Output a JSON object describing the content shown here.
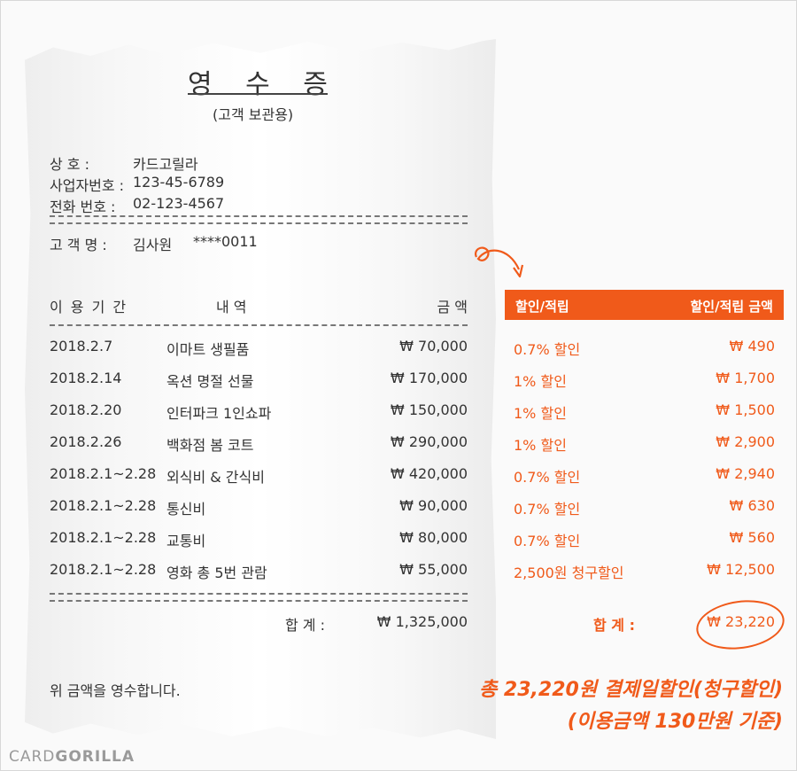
{
  "receipt": {
    "title": "영 수 증",
    "subtitle": "(고객 보관용)",
    "store": {
      "name_label": "상       호 :",
      "name_value": "카드고릴라",
      "biz_label": "사업자번호 :",
      "biz_value": "123-45-6789",
      "phone_label": "전화  번호 :",
      "phone_value": "02-123-4567"
    },
    "customer_label": "고  객  명 :",
    "customer_value": "김사원",
    "card_value": "****0011",
    "headers": {
      "period": "이 용 기 간",
      "item": "내         역",
      "amount": "금        액"
    },
    "rows": [
      {
        "date": "2018.2.7",
        "item": "이마트 생필품",
        "amount": "₩ 70,000"
      },
      {
        "date": "2018.2.14",
        "item": "옥션 명절 선물",
        "amount": "₩ 170,000"
      },
      {
        "date": "2018.2.20",
        "item": "인터파크 1인쇼파",
        "amount": "₩ 150,000"
      },
      {
        "date": "2018.2.26",
        "item": "백화점 봄 코트",
        "amount": "₩ 290,000"
      },
      {
        "date": "2018.2.1~2.28",
        "item": "외식비 & 간식비",
        "amount": "₩ 420,000"
      },
      {
        "date": "2018.2.1~2.28",
        "item": "통신비",
        "amount": "₩ 90,000"
      },
      {
        "date": "2018.2.1~2.28",
        "item": "교통비",
        "amount": "₩ 80,000"
      },
      {
        "date": "2018.2.1~2.28",
        "item": "영화 총 5번 관람",
        "amount": "₩ 55,000"
      }
    ],
    "total_label": "합      계 :",
    "total_value": "₩ 1,325,000",
    "footer": "위 금액을 영수합니다."
  },
  "discount": {
    "header_left": "할인/적립",
    "header_right": "할인/적립 금액",
    "rows": [
      {
        "desc": "0.7% 할인",
        "amount": "₩ 490"
      },
      {
        "desc": "1% 할인",
        "amount": "₩ 1,700"
      },
      {
        "desc": "1% 할인",
        "amount": "₩ 1,500"
      },
      {
        "desc": "1% 할인",
        "amount": "₩ 2,900"
      },
      {
        "desc": "0.7% 할인",
        "amount": "₩ 2,940"
      },
      {
        "desc": "0.7% 할인",
        "amount": "₩ 630"
      },
      {
        "desc": "0.7% 할인",
        "amount": "₩ 560"
      },
      {
        "desc": "2,500원 청구할인",
        "amount": "₩ 12,500"
      }
    ],
    "total_label": "합      계 :",
    "total_value": "₩ 23,220"
  },
  "summary": {
    "line1": "총 23,220원 결제일할인(청구할인)",
    "line2": "(이용금액 130만원 기준)"
  },
  "logo": {
    "part1": "CARD",
    "part2": "GORILLA"
  },
  "colors": {
    "accent": "#f05a1a",
    "text": "#333333"
  }
}
